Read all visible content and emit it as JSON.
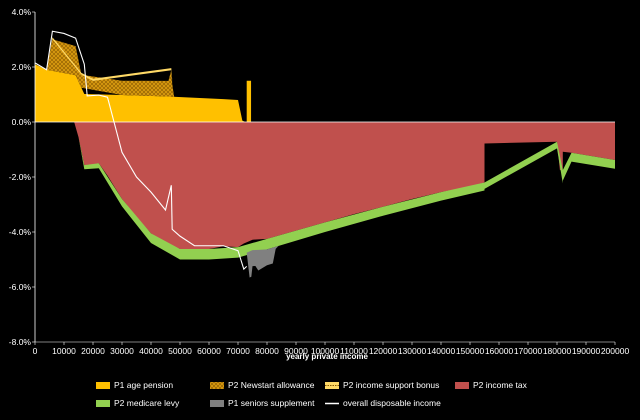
{
  "chart_data": {
    "type": "area",
    "xlabel": "yearly private income",
    "ylabel": "",
    "xlim": [
      0,
      200000
    ],
    "ylim": [
      -0.08,
      0.04
    ],
    "x_ticks": [
      "0",
      "10000",
      "20000",
      "30000",
      "40000",
      "50000",
      "60000",
      "70000",
      "80000",
      "90000",
      "100000",
      "110000",
      "120000",
      "130000",
      "140000",
      "150000",
      "160000",
      "170000",
      "180000",
      "190000",
      "200000"
    ],
    "y_ticks": [
      "4.0%",
      "2.0%",
      "0.0%",
      "-2.0%",
      "-4.0%",
      "-6.0%",
      "-8.0%"
    ],
    "legend_position": "bottom",
    "series": [
      {
        "name": "P1 age pension",
        "color": "#FFC000",
        "kind": "area",
        "points": [
          [
            0,
            0.021
          ],
          [
            4000,
            0.019
          ],
          [
            9000,
            0.018
          ],
          [
            14000,
            0.017
          ],
          [
            17000,
            0.0102
          ],
          [
            30000,
            0.0098
          ],
          [
            45000,
            0.0093
          ],
          [
            55000,
            0.0088
          ],
          [
            65000,
            0.0083
          ],
          [
            70000,
            0.008
          ],
          [
            71500,
            0.0005
          ],
          [
            72500,
            0.0
          ],
          [
            73000,
            0
          ],
          [
            73000,
            0.015
          ],
          [
            74500,
            0.015
          ],
          [
            74500,
            0
          ],
          [
            76000,
            0
          ]
        ]
      },
      {
        "name": "P2 Newstart allowance",
        "color": "#E3A10F",
        "kind": "stack",
        "points": [
          [
            0,
            0.0
          ],
          [
            4000,
            0.0
          ],
          [
            6000,
            0.0115
          ],
          [
            14000,
            0.0106
          ],
          [
            16000,
            0.0047
          ],
          [
            30000,
            0.0052
          ],
          [
            46000,
            0.0057
          ],
          [
            47000,
            0.0096
          ],
          [
            47300,
            0.0047
          ],
          [
            48000,
            0.0
          ]
        ]
      },
      {
        "name": "P2 income support bonus",
        "color": "#FFD966",
        "kind": "stack",
        "points": [
          [
            0,
            0.0
          ],
          [
            5000,
            0.0
          ],
          [
            6000,
            0.0007
          ],
          [
            16000,
            0.0007
          ],
          [
            20000,
            0.0008
          ],
          [
            47000,
            0.0008
          ],
          [
            47500,
            0.0
          ]
        ]
      },
      {
        "name": "P2 income tax",
        "color": "#C0504D",
        "kind": "area",
        "points": [
          [
            0,
            0
          ],
          [
            13500,
            0
          ],
          [
            15000,
            -0.0055
          ],
          [
            17000,
            -0.0157
          ],
          [
            20000,
            -0.0155
          ],
          [
            22000,
            -0.015
          ],
          [
            25000,
            -0.0195
          ],
          [
            30000,
            -0.028
          ],
          [
            35000,
            -0.0345
          ],
          [
            40000,
            -0.0405
          ],
          [
            45000,
            -0.044
          ],
          [
            50000,
            -0.0462
          ],
          [
            55000,
            -0.0468
          ],
          [
            60000,
            -0.0462
          ],
          [
            65000,
            -0.0452
          ],
          [
            70000,
            -0.0455
          ],
          [
            72000,
            -0.0442
          ],
          [
            75000,
            -0.0428
          ],
          [
            80000,
            -0.0425
          ],
          [
            90000,
            -0.0395
          ],
          [
            100000,
            -0.0365
          ],
          [
            110000,
            -0.0335
          ],
          [
            120000,
            -0.0308
          ],
          [
            130000,
            -0.028
          ],
          [
            140000,
            -0.0255
          ],
          [
            150000,
            -0.0235
          ],
          [
            155000,
            -0.022
          ],
          [
            155000,
            -0.0078
          ],
          [
            180000,
            -0.0072
          ],
          [
            181000,
            -0.0175
          ],
          [
            182000,
            -0.0175
          ],
          [
            182000,
            -0.0108
          ],
          [
            185000,
            -0.0112
          ],
          [
            200000,
            -0.0138
          ],
          [
            200000,
            0
          ]
        ]
      },
      {
        "name": "P2 medicare levy",
        "color": "#92D050",
        "kind": "stack",
        "points": [
          [
            0,
            0
          ],
          [
            15000,
            0
          ],
          [
            17000,
            -0.0015
          ],
          [
            22000,
            -0.0018
          ],
          [
            30000,
            -0.0027
          ],
          [
            40000,
            -0.0035
          ],
          [
            50000,
            -0.0038
          ],
          [
            60000,
            -0.0038
          ],
          [
            70000,
            -0.0038
          ],
          [
            80000,
            -0.0038
          ],
          [
            100000,
            -0.0035
          ],
          [
            120000,
            -0.0033
          ],
          [
            140000,
            -0.0031
          ],
          [
            155000,
            -0.0029
          ],
          [
            155000,
            -0.0023
          ],
          [
            180000,
            -0.0024
          ],
          [
            182000,
            -0.0048
          ],
          [
            182000,
            -0.0038
          ],
          [
            185000,
            -0.0032
          ],
          [
            200000,
            -0.0032
          ]
        ]
      },
      {
        "name": "P1 seniors supplement",
        "color": "#808080",
        "kind": "stack",
        "points": [
          [
            0,
            0
          ],
          [
            73000,
            0
          ],
          [
            74000,
            -0.0095
          ],
          [
            74600,
            -0.0095
          ],
          [
            75000,
            -0.0058
          ],
          [
            76000,
            -0.0058
          ],
          [
            77000,
            -0.0075
          ],
          [
            80000,
            -0.0058
          ],
          [
            82000,
            -0.0058
          ],
          [
            83000,
            -0.0008
          ],
          [
            84000,
            0
          ]
        ]
      },
      {
        "name": "overall disposable income",
        "color": "#FFFFFF",
        "kind": "line",
        "points": [
          [
            0,
            0.0215
          ],
          [
            4000,
            0.019
          ],
          [
            6000,
            0.033
          ],
          [
            10000,
            0.0322
          ],
          [
            14000,
            0.0305
          ],
          [
            17000,
            0.021
          ],
          [
            18000,
            0.0095
          ],
          [
            22000,
            0.0098
          ],
          [
            25000,
            0.009
          ],
          [
            28000,
            -0.003
          ],
          [
            30000,
            -0.011
          ],
          [
            35000,
            -0.02
          ],
          [
            40000,
            -0.0255
          ],
          [
            45000,
            -0.032
          ],
          [
            47000,
            -0.023
          ],
          [
            47300,
            -0.039
          ],
          [
            50000,
            -0.0415
          ],
          [
            55000,
            -0.045
          ],
          [
            60000,
            -0.045
          ],
          [
            65000,
            -0.045
          ],
          [
            70000,
            -0.0468
          ],
          [
            72000,
            -0.0535
          ],
          [
            73000,
            -0.0525
          ]
        ]
      }
    ]
  }
}
